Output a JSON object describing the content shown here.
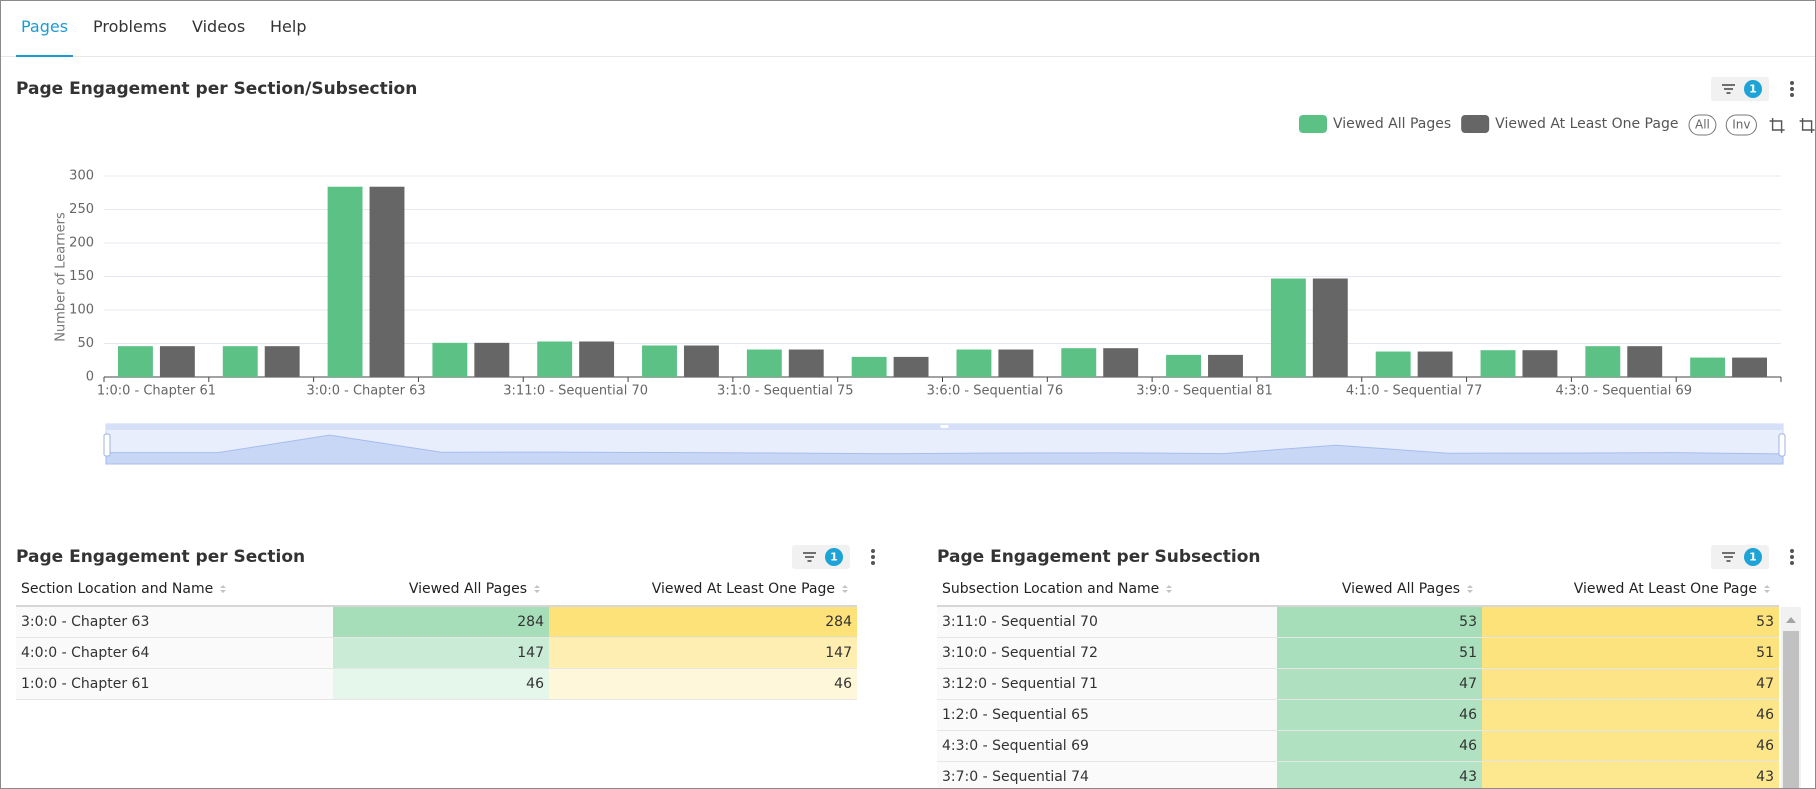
{
  "tabs": [
    "Pages",
    "Problems",
    "Videos",
    "Help"
  ],
  "chart_data": {
    "type": "bar",
    "title": "Page Engagement per Section/Subsection",
    "y_label": "Number of Learners",
    "categories": [
      "1:0:0 - Chapter 61",
      null,
      "3:0:0 - Chapter 63",
      null,
      "3:11:0 - Sequential 70",
      null,
      "3:1:0 - Sequential 75",
      null,
      "3:6:0 - Sequential 76",
      null,
      "3:9:0 - Sequential 81",
      null,
      "4:1:0 - Sequential 77",
      null,
      "4:3:0 - Sequential 69",
      null
    ],
    "series": [
      {
        "name": "Viewed All Pages",
        "color": "#5cc185",
        "values": [
          46,
          46,
          284,
          51,
          53,
          47,
          41,
          30,
          41,
          43,
          33,
          147,
          38,
          40,
          46,
          29
        ]
      },
      {
        "name": "Viewed At Least One Page",
        "color": "#666666",
        "values": [
          46,
          46,
          284,
          51,
          53,
          47,
          41,
          30,
          41,
          43,
          33,
          147,
          38,
          40,
          46,
          29
        ]
      }
    ],
    "ylim": [
      0,
      300
    ],
    "yticks": [
      0,
      50,
      100,
      150,
      200,
      250,
      300
    ],
    "grid": true,
    "legend": "top-right"
  },
  "chart_controls": {
    "filter_count": 1,
    "buttons": [
      "All",
      "Inv"
    ]
  },
  "section_table": {
    "title": "Page Engagement per Section",
    "filter_count": 1,
    "columns": [
      "Section Location and Name",
      "Viewed All Pages",
      "Viewed At Least One Page"
    ],
    "rows": [
      [
        "3:0:0 - Chapter 63",
        284,
        284
      ],
      [
        "4:0:0 - Chapter 64",
        147,
        147
      ],
      [
        "1:0:0 - Chapter 61",
        46,
        46
      ]
    ]
  },
  "subsection_table": {
    "title": "Page Engagement per Subsection",
    "filter_count": 1,
    "columns": [
      "Subsection Location and Name",
      "Viewed All Pages",
      "Viewed At Least One Page"
    ],
    "rows": [
      [
        "3:11:0 - Sequential 70",
        53,
        53
      ],
      [
        "3:10:0 - Sequential 72",
        51,
        51
      ],
      [
        "3:12:0 - Sequential 71",
        47,
        47
      ],
      [
        "1:2:0 - Sequential 65",
        46,
        46
      ],
      [
        "4:3:0 - Sequential 69",
        46,
        46
      ],
      [
        "3:7:0 - Sequential 74",
        43,
        43
      ]
    ]
  }
}
